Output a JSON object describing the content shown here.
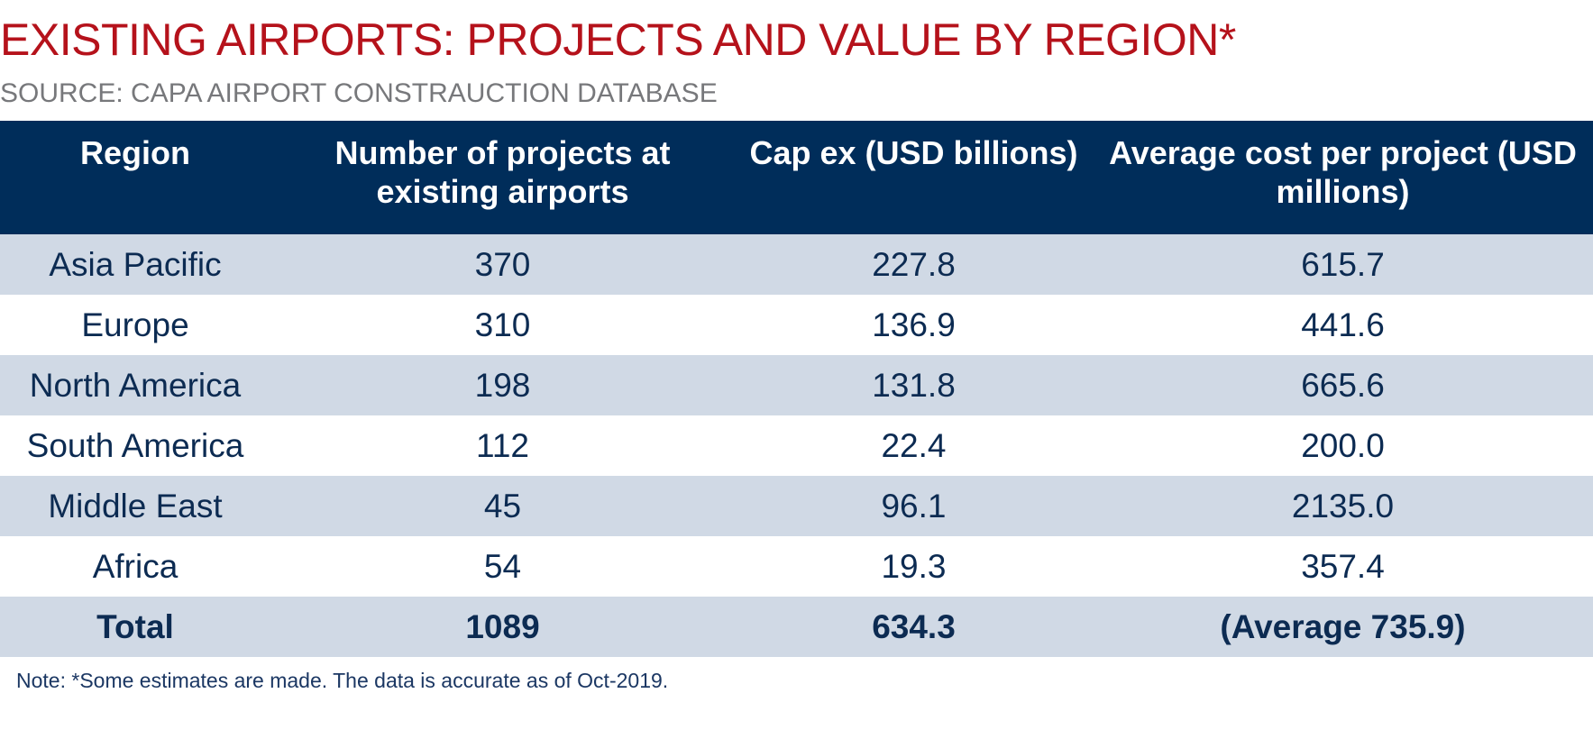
{
  "title": "EXISTING AIRPORTS: PROJECTS AND VALUE BY REGION*",
  "subtitle": "SOURCE: CAPA AIRPORT CONSTRAUCTION DATABASE",
  "note": "Note: *Some estimates are made. The data is accurate as of Oct-2019.",
  "colors": {
    "title": "#b5121b",
    "subtitle": "#77787b",
    "header_bg": "#002d5a",
    "row_shade": "#d0d9e5",
    "text": "#0c2b52"
  },
  "chart_data": {
    "type": "table",
    "title": "EXISTING AIRPORTS: PROJECTS AND VALUE BY REGION*",
    "columns": [
      "Region",
      "Number of projects at existing airports",
      "Cap ex (USD billions)",
      "Average cost per project (USD millions)"
    ],
    "rows": [
      [
        "Asia Pacific",
        "370",
        "227.8",
        "615.7"
      ],
      [
        "Europe",
        "310",
        "136.9",
        "441.6"
      ],
      [
        "North America",
        "198",
        "131.8",
        "665.6"
      ],
      [
        "South America",
        "112",
        "22.4",
        "200.0"
      ],
      [
        "Middle East",
        "45",
        "96.1",
        "2135.0"
      ],
      [
        "Africa",
        "54",
        "19.3",
        "357.4"
      ]
    ],
    "total": [
      "Total",
      "1089",
      "634.3",
      "(Average 735.9)"
    ]
  }
}
